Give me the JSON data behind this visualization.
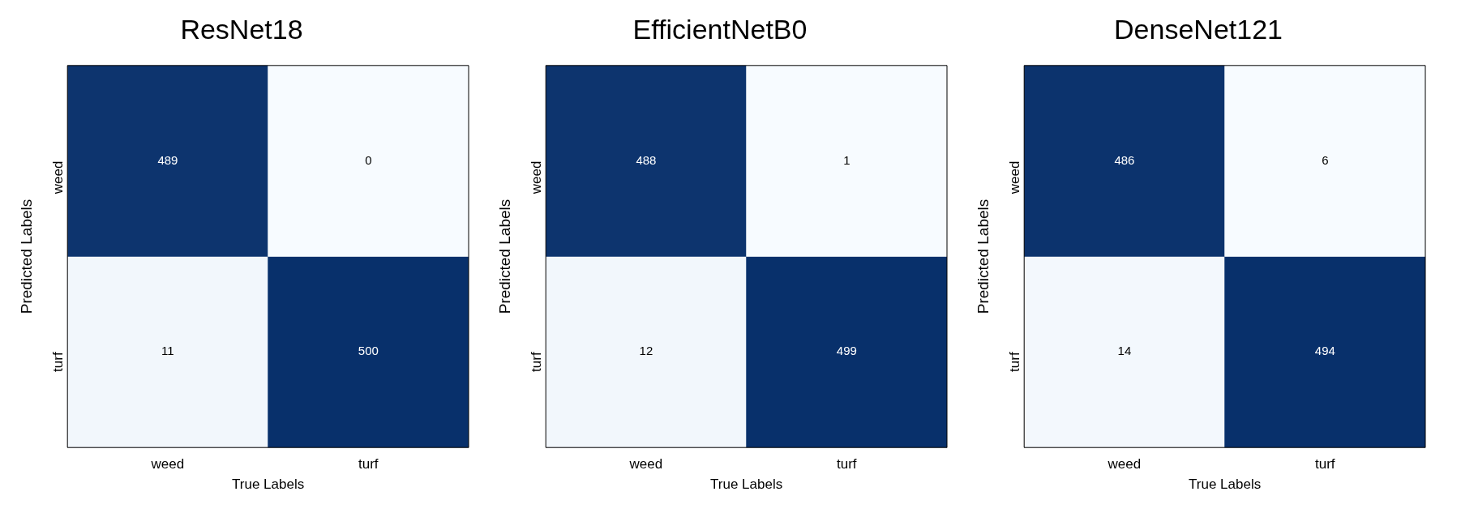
{
  "chart_data": [
    {
      "type": "heatmap",
      "title": "ResNet18",
      "xlabel": "True Labels",
      "ylabel": "Predicted Labels",
      "categories": [
        "weed",
        "turf"
      ],
      "y_categories": [
        "weed",
        "turf"
      ],
      "cells": [
        [
          489,
          0
        ],
        [
          11,
          500
        ]
      ],
      "data_labels": true
    },
    {
      "type": "heatmap",
      "title": "EfficientNetB0",
      "xlabel": "True Labels",
      "ylabel": "Predicted Labels",
      "categories": [
        "weed",
        "turf"
      ],
      "y_categories": [
        "weed",
        "turf"
      ],
      "cells": [
        [
          488,
          1
        ],
        [
          12,
          499
        ]
      ],
      "data_labels": true
    },
    {
      "type": "heatmap",
      "title": "DenseNet121",
      "xlabel": "True Labels",
      "ylabel": "Predicted Labels",
      "categories": [
        "weed",
        "turf"
      ],
      "y_categories": [
        "weed",
        "turf"
      ],
      "cells": [
        [
          486,
          6
        ],
        [
          14,
          494
        ]
      ],
      "data_labels": true
    }
  ]
}
